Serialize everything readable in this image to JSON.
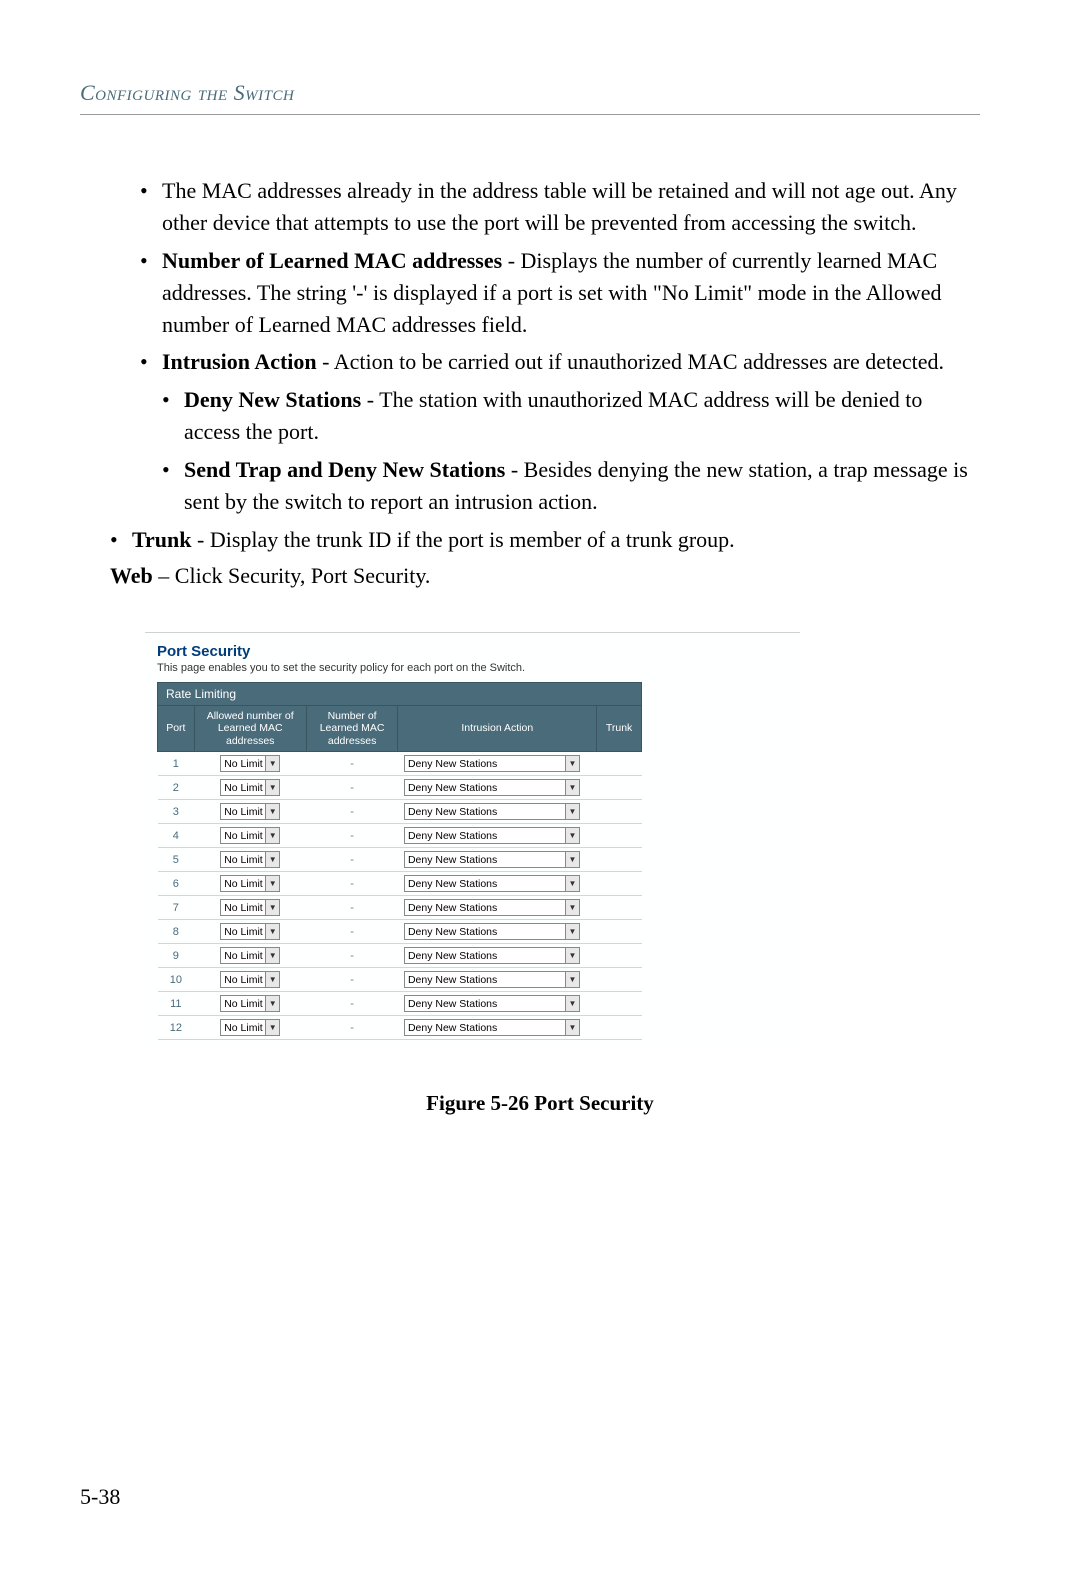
{
  "header": "Configuring the Switch",
  "bullets": {
    "b1": "The MAC addresses already in the address table will be retained and will not age out. Any other device that attempts to use the port will be prevented from accessing the switch.",
    "b2_bold": "Number of Learned MAC addresses",
    "b2_rest": " - Displays the number of currently learned MAC addresses. The string '-' is displayed if a port is set with \"No Limit\" mode in the Allowed number of Learned MAC addresses field.",
    "b3_bold": "Intrusion Action",
    "b3_rest": " - Action to be carried out if unauthorized MAC addresses are detected.",
    "b3a_bold": "Deny New Stations",
    "b3a_rest": " - The station with unauthorized MAC address will be denied to access the port.",
    "b3b_bold": "Send Trap and Deny New Stations",
    "b3b_rest": " - Besides denying the new station, a trap message is sent by the switch to report an intrusion action.",
    "trunk_bold": "Trunk",
    "trunk_rest": " - Display the trunk ID if the port is member of a trunk group.",
    "web_bold": "Web",
    "web_rest": " – Click Security, Port Security."
  },
  "screenshot": {
    "title": "Port Security",
    "desc": "This page enables you to set the security policy for each port on the Switch.",
    "tab": "Rate Limiting",
    "cols": {
      "port": "Port",
      "allowed": "Allowed number of Learned MAC addresses",
      "number": "Number of Learned MAC addresses",
      "intrusion": "Intrusion Action",
      "trunk": "Trunk"
    },
    "allow_opt": "No Limit",
    "num_val": "-",
    "intr_opt": "Deny New Stations",
    "ports": [
      "1",
      "2",
      "3",
      "4",
      "5",
      "6",
      "7",
      "8",
      "9",
      "10",
      "11",
      "12"
    ]
  },
  "figure_caption": "Figure 5-26  Port Security",
  "page_number": "5-38",
  "colors": {
    "header_text": "#4a6b7a",
    "table_header_bg": "#4a6b7a",
    "table_header_border": "#3a5560",
    "link_blue": "#003d7a",
    "row_border": "#d5d5d5"
  }
}
